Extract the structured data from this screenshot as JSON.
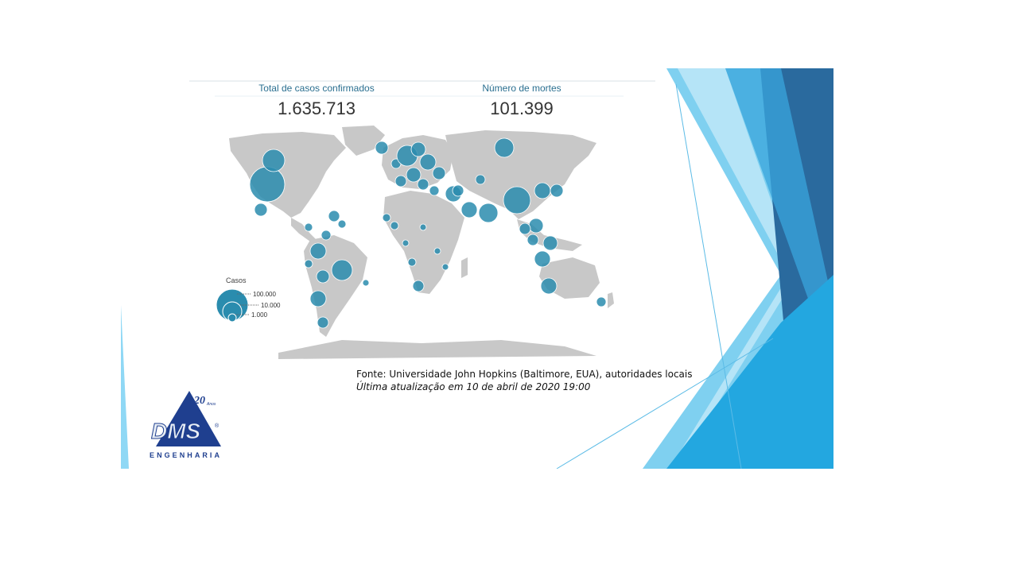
{
  "stats": {
    "confirmed_label": "Total de casos confirmados",
    "confirmed_value": "1.635.713",
    "deaths_label": "Número de mortes",
    "deaths_value": "101.399"
  },
  "legend": {
    "title": "Casos",
    "items": [
      "100.000",
      "10.000",
      "1.000"
    ]
  },
  "source": {
    "line1": "Fonte: Universidade John Hopkins (Baltimore, EUA), autoridades locais",
    "line2": "Última atualização em 10 de abril de 2020 19:00"
  },
  "logo": {
    "brand": "DMS",
    "years": "20",
    "years_suffix": "Anos",
    "subtitle": "ENGENHARIA",
    "registered": "®"
  },
  "colors": {
    "land": "#c8c8c8",
    "bubble": "#2a8cae",
    "bubble_stroke": "#ffffff",
    "stat_label": "#2a6f90",
    "deco_dark": "#2a6a9e",
    "deco_mid": "#3aa6dc",
    "deco_light": "#7fd0f0"
  }
}
